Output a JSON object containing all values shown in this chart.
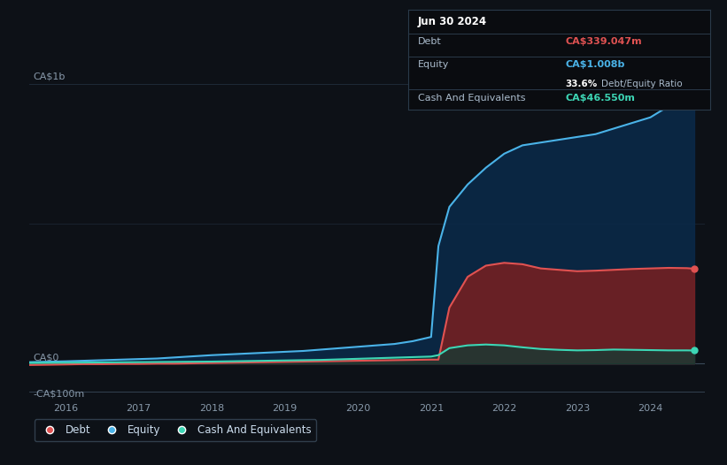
{
  "background_color": "#0d1117",
  "plot_bg_color": "#0d1117",
  "title_box": {
    "date": "Jun 30 2024",
    "debt_label": "Debt",
    "debt_value": "CA$339.047m",
    "equity_label": "Equity",
    "equity_value": "CA$1.008b",
    "ratio_value": "33.6%",
    "ratio_label": "Debt/Equity Ratio",
    "cash_label": "Cash And Equivalents",
    "cash_value": "CA$46.550m"
  },
  "ylabel_top": "CA$1b",
  "ylabel_zero": "CA$0",
  "ylabel_neg": "-CA$100m",
  "x_ticks": [
    2016,
    2017,
    2018,
    2019,
    2020,
    2021,
    2022,
    2023,
    2024
  ],
  "xlim": [
    2015.5,
    2024.75
  ],
  "ylim_bottom": -130000000,
  "ylim_top": 1100000000,
  "line_colors": {
    "debt": "#e05252",
    "equity": "#4ab3e8",
    "cash": "#3dd6b5"
  },
  "fill_colors": {
    "debt": "#7a2020",
    "equity": "#0a2a4a",
    "cash": "#0d3d35"
  },
  "years": [
    2015.5,
    2016.0,
    2016.25,
    2016.5,
    2016.75,
    2017.0,
    2017.25,
    2017.5,
    2017.75,
    2018.0,
    2018.25,
    2018.5,
    2018.75,
    2019.0,
    2019.25,
    2019.5,
    2019.75,
    2020.0,
    2020.25,
    2020.5,
    2020.75,
    2021.0,
    2021.1,
    2021.25,
    2021.5,
    2021.75,
    2022.0,
    2022.25,
    2022.5,
    2022.75,
    2023.0,
    2023.25,
    2023.5,
    2023.75,
    2024.0,
    2024.25,
    2024.5,
    2024.6
  ],
  "equity": [
    5000000,
    8000000,
    10000000,
    12000000,
    14000000,
    16000000,
    18000000,
    22000000,
    26000000,
    30000000,
    33000000,
    36000000,
    39000000,
    42000000,
    45000000,
    50000000,
    55000000,
    60000000,
    65000000,
    70000000,
    80000000,
    95000000,
    420000000,
    560000000,
    640000000,
    700000000,
    750000000,
    780000000,
    790000000,
    800000000,
    810000000,
    820000000,
    840000000,
    860000000,
    880000000,
    920000000,
    980000000,
    1008000000
  ],
  "debt": [
    -5000000,
    -3000000,
    -2000000,
    -2000000,
    -1000000,
    -1000000,
    0,
    0,
    1000000,
    2000000,
    3000000,
    4000000,
    5000000,
    6000000,
    7000000,
    8000000,
    9000000,
    10000000,
    11000000,
    12000000,
    13000000,
    14000000,
    14000000,
    200000000,
    310000000,
    350000000,
    360000000,
    355000000,
    340000000,
    335000000,
    330000000,
    332000000,
    335000000,
    338000000,
    340000000,
    342000000,
    341000000,
    339047000
  ],
  "cash": [
    2000000,
    3000000,
    3500000,
    4000000,
    4500000,
    5000000,
    5500000,
    6000000,
    6500000,
    7000000,
    8000000,
    9000000,
    10000000,
    11000000,
    12000000,
    13000000,
    15000000,
    17000000,
    19000000,
    21000000,
    23000000,
    25000000,
    30000000,
    55000000,
    65000000,
    68000000,
    65000000,
    58000000,
    52000000,
    49000000,
    47000000,
    48000000,
    50000000,
    49000000,
    48000000,
    47000000,
    47000000,
    46550000
  ]
}
